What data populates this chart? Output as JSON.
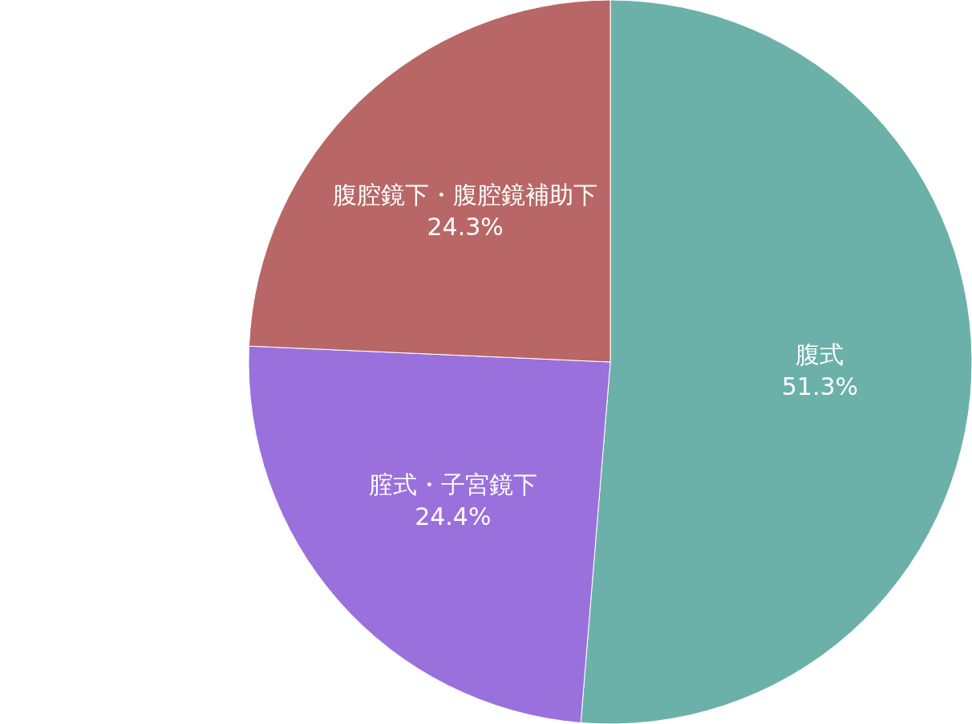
{
  "chart_data": {
    "type": "pie",
    "categories": [
      "腹式",
      "腟式・子宮鏡下",
      "腹腔鏡下・腹腔鏡補助下"
    ],
    "values": [
      51.3,
      24.4,
      24.3
    ],
    "value_labels": [
      "51.3%",
      "24.4%",
      "24.3%"
    ],
    "colors": [
      "#6bb1aa",
      "#9a70dd",
      "#b86766"
    ],
    "legend": false
  }
}
